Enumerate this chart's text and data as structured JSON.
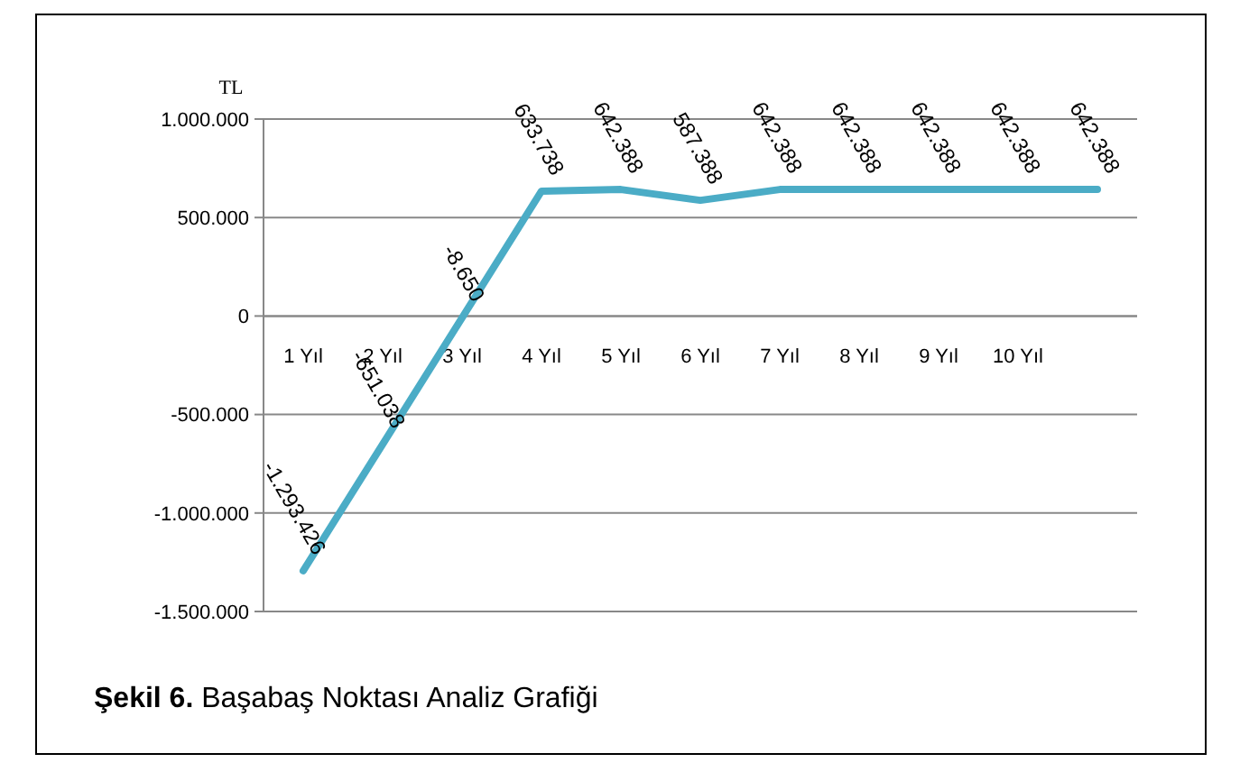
{
  "chart_data": {
    "type": "line",
    "title": "Şekil 6. Başabaş Noktası Analiz Grafiği",
    "ylabel": "TL",
    "categories": [
      "1 Yıl",
      "2 Yıl",
      "3 Yıl",
      "4 Yıl",
      "5 Yıl",
      "6 Yıl",
      "7 Yıl",
      "8 Yıl",
      "9 Yıl",
      "10 Yıl",
      null
    ],
    "series": [
      {
        "color": "#4bacc6",
        "values": [
          -1293426,
          -651038,
          -8650,
          633738,
          642388,
          587388,
          642388,
          642388,
          642388,
          642388,
          642388
        ],
        "value_labels": [
          "-1.293.426",
          "-651.038",
          "-8.650",
          "633.738",
          "642.388",
          "587.388",
          "642.388",
          "642.388",
          "642.388",
          "642.388",
          "642.388"
        ]
      }
    ],
    "ylim": [
      -1500000,
      1000000
    ],
    "yticks": [
      {
        "value": -1500000,
        "label": "-1.500.000"
      },
      {
        "value": -1000000,
        "label": "-1.000.000"
      },
      {
        "value": -500000,
        "label": "-500.000"
      },
      {
        "value": 0,
        "label": "0"
      },
      {
        "value": 500000,
        "label": "500.000"
      },
      {
        "value": 1000000,
        "label": "1.000.000"
      }
    ],
    "grid": "y",
    "marker": "none",
    "line_style": "solid"
  }
}
